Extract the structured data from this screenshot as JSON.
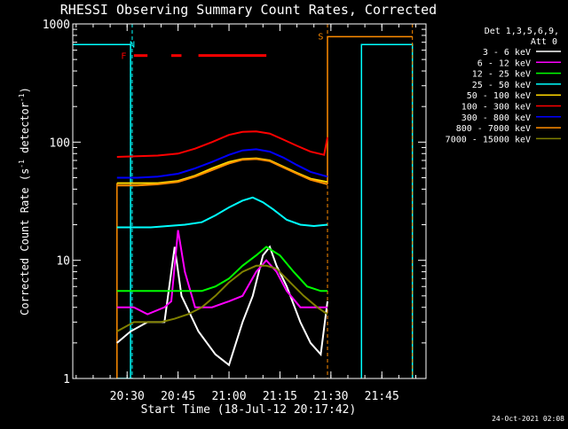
{
  "chart_data": {
    "type": "line",
    "title": "RHESSI Observing Summary Count Rates, Corrected",
    "xlabel": "Start Time (18-Jul-12 20:17:42)",
    "ylabel_main": "Corrected Count Rate (s",
    "ylabel_sup1": "-1",
    "ylabel_mid": " detector",
    "ylabel_sup2": "-1",
    "ylabel_end": ")",
    "yscale": "log",
    "ylim": [
      1,
      1000
    ],
    "xlim_min": [
      1214,
      1318
    ],
    "x_ticks": [
      {
        "min": 1230,
        "label": "20:30"
      },
      {
        "min": 1245,
        "label": "20:45"
      },
      {
        "min": 1260,
        "label": "21:00"
      },
      {
        "min": 1275,
        "label": "21:15"
      },
      {
        "min": 1290,
        "label": "21:30"
      },
      {
        "min": 1305,
        "label": "21:45"
      }
    ],
    "y_ticks": [
      {
        "value": 1,
        "label": "1"
      },
      {
        "value": 10,
        "label": "10"
      },
      {
        "value": 100,
        "label": "100"
      },
      {
        "value": 1000,
        "label": "1000"
      }
    ],
    "legend_header1": "Det 1,3,5,6,9,",
    "legend_header2": "Att 0",
    "legend_position": "right",
    "series": [
      {
        "name": "3 - 6 keV",
        "color": "#ffffff",
        "points": [
          [
            1227,
            2
          ],
          [
            1231,
            2.5
          ],
          [
            1236,
            3
          ],
          [
            1241,
            3
          ],
          [
            1244,
            13
          ],
          [
            1246,
            5
          ],
          [
            1251,
            2.5
          ],
          [
            1256,
            1.6
          ],
          [
            1260,
            1.3
          ],
          [
            1264,
            3
          ],
          [
            1267,
            5
          ],
          [
            1270,
            11
          ],
          [
            1272,
            13
          ],
          [
            1274,
            9
          ],
          [
            1277,
            6
          ],
          [
            1281,
            3
          ],
          [
            1284,
            2
          ],
          [
            1287,
            1.6
          ],
          [
            1289,
            4.5
          ]
        ]
      },
      {
        "name": "6 - 12 keV",
        "color": "#ff00ff",
        "points": [
          [
            1227,
            4
          ],
          [
            1232,
            4
          ],
          [
            1236,
            3.5
          ],
          [
            1241,
            4
          ],
          [
            1243,
            4.5
          ],
          [
            1245,
            18
          ],
          [
            1247,
            8
          ],
          [
            1250,
            4
          ],
          [
            1255,
            4
          ],
          [
            1260,
            4.5
          ],
          [
            1264,
            5
          ],
          [
            1268,
            8
          ],
          [
            1271,
            10
          ],
          [
            1274,
            8
          ],
          [
            1277,
            5.5
          ],
          [
            1281,
            4
          ],
          [
            1285,
            4
          ],
          [
            1289,
            4
          ]
        ]
      },
      {
        "name": "12 - 25 keV",
        "color": "#00ff00",
        "points": [
          [
            1227,
            5.5
          ],
          [
            1232,
            5.5
          ],
          [
            1237,
            5.5
          ],
          [
            1242,
            5.5
          ],
          [
            1247,
            5.5
          ],
          [
            1252,
            5.5
          ],
          [
            1256,
            6
          ],
          [
            1260,
            7
          ],
          [
            1264,
            9
          ],
          [
            1268,
            11
          ],
          [
            1271,
            13
          ],
          [
            1275,
            11
          ],
          [
            1279,
            8
          ],
          [
            1283,
            6
          ],
          [
            1287,
            5.5
          ],
          [
            1289,
            5.5
          ]
        ]
      },
      {
        "name": "25 - 50 keV",
        "color": "#00ffff",
        "points": [
          [
            1227,
            19
          ],
          [
            1232,
            19
          ],
          [
            1237,
            19
          ],
          [
            1242,
            19.5
          ],
          [
            1247,
            20
          ],
          [
            1252,
            21
          ],
          [
            1256,
            24
          ],
          [
            1260,
            28
          ],
          [
            1264,
            32
          ],
          [
            1267,
            34
          ],
          [
            1270,
            31
          ],
          [
            1273,
            27
          ],
          [
            1277,
            22
          ],
          [
            1281,
            20
          ],
          [
            1285,
            19.5
          ],
          [
            1289,
            20
          ]
        ]
      },
      {
        "name": "50 - 100 keV",
        "color": "#ffd700",
        "points": [
          [
            1227,
            45
          ],
          [
            1233,
            45
          ],
          [
            1239,
            45
          ],
          [
            1245,
            47
          ],
          [
            1250,
            52
          ],
          [
            1255,
            60
          ],
          [
            1260,
            68
          ],
          [
            1264,
            72
          ],
          [
            1268,
            73
          ],
          [
            1272,
            70
          ],
          [
            1276,
            62
          ],
          [
            1280,
            55
          ],
          [
            1284,
            49
          ],
          [
            1289,
            46
          ]
        ]
      },
      {
        "name": "100 - 300 keV",
        "color": "#ff0000",
        "points": [
          [
            1227,
            75
          ],
          [
            1233,
            76
          ],
          [
            1239,
            77
          ],
          [
            1245,
            80
          ],
          [
            1250,
            88
          ],
          [
            1255,
            100
          ],
          [
            1260,
            115
          ],
          [
            1264,
            122
          ],
          [
            1268,
            123
          ],
          [
            1272,
            118
          ],
          [
            1276,
            105
          ],
          [
            1280,
            93
          ],
          [
            1284,
            83
          ],
          [
            1288,
            78
          ],
          [
            1289,
            110
          ]
        ]
      },
      {
        "name": "300 - 800 keV",
        "color": "#0000ff",
        "points": [
          [
            1227,
            50
          ],
          [
            1233,
            50
          ],
          [
            1239,
            51
          ],
          [
            1245,
            54
          ],
          [
            1250,
            60
          ],
          [
            1255,
            68
          ],
          [
            1260,
            78
          ],
          [
            1264,
            85
          ],
          [
            1268,
            87
          ],
          [
            1272,
            83
          ],
          [
            1276,
            74
          ],
          [
            1280,
            64
          ],
          [
            1284,
            56
          ],
          [
            1289,
            51
          ]
        ]
      },
      {
        "name": "800 - 7000 keV",
        "color": "#ff8c00",
        "points": [
          [
            1227,
            43
          ],
          [
            1233,
            43
          ],
          [
            1239,
            44
          ],
          [
            1245,
            46
          ],
          [
            1250,
            51
          ],
          [
            1255,
            58
          ],
          [
            1260,
            66
          ],
          [
            1264,
            71
          ],
          [
            1268,
            72
          ],
          [
            1272,
            69
          ],
          [
            1276,
            61
          ],
          [
            1280,
            54
          ],
          [
            1284,
            48
          ],
          [
            1289,
            44
          ]
        ]
      },
      {
        "name": "7000 - 15000 keV",
        "color": "#808000",
        "points": [
          [
            1227,
            2.5
          ],
          [
            1232,
            3
          ],
          [
            1236,
            3
          ],
          [
            1240,
            3
          ],
          [
            1244,
            3.2
          ],
          [
            1248,
            3.5
          ],
          [
            1252,
            4
          ],
          [
            1256,
            5
          ],
          [
            1260,
            6.5
          ],
          [
            1264,
            8
          ],
          [
            1268,
            9
          ],
          [
            1271,
            9
          ],
          [
            1274,
            8.5
          ],
          [
            1278,
            6.5
          ],
          [
            1282,
            5
          ],
          [
            1286,
            4
          ],
          [
            1289,
            3.5
          ]
        ]
      }
    ],
    "attenuator_series": [
      {
        "color": "#00ffff",
        "points": [
          [
            1214,
            670
          ],
          [
            1231,
            670
          ],
          [
            1231,
            1
          ],
          [
            1227,
            1
          ]
        ]
      },
      {
        "color": "#00ffff",
        "points": [
          [
            1299,
            1
          ],
          [
            1299,
            670
          ],
          [
            1314,
            670
          ],
          [
            1314,
            1
          ]
        ]
      },
      {
        "color": "#ff8c00",
        "points": [
          [
            1227,
            1
          ],
          [
            1227,
            45
          ]
        ]
      },
      {
        "color": "#ff8c00",
        "points": [
          [
            1289,
            44
          ],
          [
            1289,
            780
          ],
          [
            1314,
            780
          ]
        ]
      }
    ],
    "markers": [
      {
        "label": "N",
        "color": "#00ffff",
        "x": 1231.5,
        "y": 680
      },
      {
        "label": "F",
        "color": "#ff0000",
        "x": 1229,
        "y": 540
      },
      {
        "label": "S",
        "color": "#ff8c00",
        "x": 1287,
        "y": 790
      }
    ],
    "flare_bars": [
      [
        1232,
        1236
      ],
      [
        1243,
        1246
      ],
      [
        1251,
        1271
      ]
    ],
    "flare_level": 540,
    "vlines_dashed": [
      {
        "min": 1231.5,
        "color": "#00ffff"
      },
      {
        "min": 1289,
        "color": "#ff8c00"
      },
      {
        "min": 1314,
        "color": "#ff8c00"
      }
    ]
  },
  "footer_date": "24-Oct-2021 02:08"
}
